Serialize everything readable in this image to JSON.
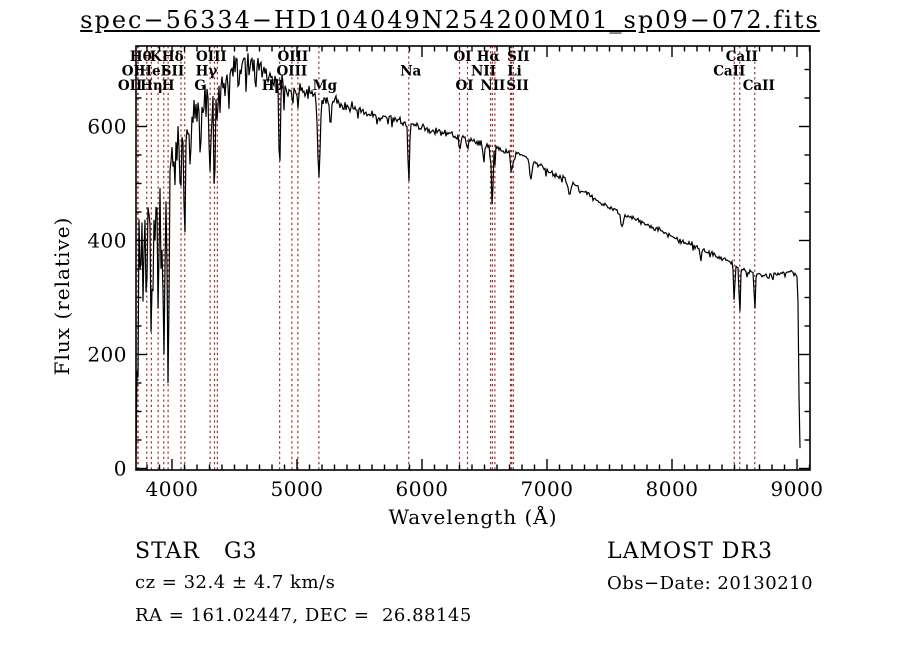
{
  "title": "spec−56334−HD104049N254200M01_sp09−072.fits",
  "axes": {
    "xlabel": "Wavelength (Å)",
    "ylabel": "Flux (relative)",
    "x_ticks": [
      4000,
      5000,
      6000,
      7000,
      8000,
      9000
    ],
    "y_ticks": [
      0,
      200,
      400,
      600
    ],
    "x_minor_step": 100,
    "y_minor_step": 50,
    "x_range": [
      3712,
      9104
    ],
    "y_range": [
      0,
      741
    ]
  },
  "annotations": {
    "class_label": "STAR   G3",
    "cz": "cz = 32.4 ± 4.7 km/s",
    "radec": "RA = 161.02447, DEC =  26.88145",
    "survey": "LAMOST DR3",
    "obs_date": "Obs−Date: 20130210"
  },
  "colors": {
    "spectrum": "#000000",
    "line_marker": "#a03028",
    "frame": "#000000"
  },
  "chart_data": {
    "type": "line",
    "title": "spec−56334−HD104049N254200M01_sp09−072.fits",
    "xlabel": "Wavelength (Å)",
    "ylabel": "Flux (relative)",
    "xlim": [
      3712,
      9104
    ],
    "ylim": [
      0,
      741
    ],
    "grid": false,
    "spectral_lines": [
      {
        "label": "OI",
        "wavelength": 3726,
        "row": 2,
        "dx": -7
      },
      {
        "label": "OII",
        "wavelength": 3729,
        "row": 3,
        "dx": -8
      },
      {
        "label": "Hθ",
        "wavelength": 3798,
        "row": 1,
        "dx": -6
      },
      {
        "label": "Hη",
        "wavelength": 3835,
        "row": 3,
        "dx": 0
      },
      {
        "label": "HeI",
        "wavelength": 3889,
        "row": 2,
        "dx": -5
      },
      {
        "label": "K",
        "wavelength": 3934,
        "row": 1,
        "dx": -8
      },
      {
        "label": "H",
        "wavelength": 3969,
        "row": 3,
        "dx": 0
      },
      {
        "label": "SII",
        "wavelength": 4072,
        "row": 2,
        "dx": -8
      },
      {
        "label": "Hδ",
        "wavelength": 4102,
        "row": 1,
        "dx": -12
      },
      {
        "label": "G",
        "wavelength": 4305,
        "row": 3,
        "dx": -10
      },
      {
        "label": "Hγ",
        "wavelength": 4340,
        "row": 2,
        "dx": -8
      },
      {
        "label": "OIII",
        "wavelength": 4363,
        "row": 1,
        "dx": -6
      },
      {
        "label": "Hβ",
        "wavelength": 4861,
        "row": 3,
        "dx": -7
      },
      {
        "label": "OIII",
        "wavelength": 4959,
        "row": 2,
        "dx": 0
      },
      {
        "label": "OIII",
        "wavelength": 5007,
        "row": 1,
        "dx": -5
      },
      {
        "label": "Mg",
        "wavelength": 5175,
        "row": 3,
        "dx": 6
      },
      {
        "label": "Na",
        "wavelength": 5894,
        "row": 2,
        "dx": 2
      },
      {
        "label": "OI",
        "wavelength": 6300,
        "row": 1,
        "dx": 3
      },
      {
        "label": "OI",
        "wavelength": 6364,
        "row": 3,
        "dx": -3
      },
      {
        "label": "NII",
        "wavelength": 6548,
        "row": 2,
        "dx": -7
      },
      {
        "label": "Hα",
        "wavelength": 6563,
        "row": 1,
        "dx": -4
      },
      {
        "label": "NII",
        "wavelength": 6583,
        "row": 3,
        "dx": -2
      },
      {
        "label": "Li",
        "wavelength": 6708,
        "row": 2,
        "dx": 4
      },
      {
        "label": "SII",
        "wavelength": 6717,
        "row": 3,
        "dx": 6
      },
      {
        "label": "SII",
        "wavelength": 6731,
        "row": 1,
        "dx": 5
      },
      {
        "label": "CaII",
        "wavelength": 8498,
        "row": 2,
        "dx": -5
      },
      {
        "label": "CaII",
        "wavelength": 8542,
        "row": 1,
        "dx": 2
      },
      {
        "label": "CaII",
        "wavelength": 8662,
        "row": 3,
        "dx": 4
      }
    ],
    "continuum": [
      [
        3712,
        15
      ],
      [
        3715,
        120
      ],
      [
        3720,
        260
      ],
      [
        3728,
        385
      ],
      [
        3745,
        420
      ],
      [
        3762,
        430
      ],
      [
        3800,
        450
      ],
      [
        3850,
        462
      ],
      [
        3900,
        478
      ],
      [
        3950,
        492
      ],
      [
        4000,
        530
      ],
      [
        4050,
        562
      ],
      [
        4100,
        588
      ],
      [
        4150,
        607
      ],
      [
        4200,
        626
      ],
      [
        4250,
        641
      ],
      [
        4300,
        655
      ],
      [
        4350,
        662
      ],
      [
        4400,
        681
      ],
      [
        4450,
        695
      ],
      [
        4500,
        705
      ],
      [
        4550,
        708
      ],
      [
        4600,
        712
      ],
      [
        4650,
        710
      ],
      [
        4700,
        707
      ],
      [
        4750,
        700
      ],
      [
        4800,
        692
      ],
      [
        4861,
        685
      ],
      [
        4900,
        668
      ],
      [
        4950,
        665
      ],
      [
        5000,
        668
      ],
      [
        5060,
        661
      ],
      [
        5120,
        657
      ],
      [
        5175,
        655
      ],
      [
        5250,
        648
      ],
      [
        5350,
        640
      ],
      [
        5450,
        633
      ],
      [
        5550,
        624
      ],
      [
        5650,
        617
      ],
      [
        5750,
        611
      ],
      [
        5850,
        607
      ],
      [
        5950,
        601
      ],
      [
        6050,
        595
      ],
      [
        6150,
        590
      ],
      [
        6250,
        586
      ],
      [
        6350,
        578
      ],
      [
        6450,
        572
      ],
      [
        6550,
        566
      ],
      [
        6650,
        559
      ],
      [
        6750,
        553
      ],
      [
        6870,
        543
      ],
      [
        7000,
        523
      ],
      [
        7100,
        512
      ],
      [
        7200,
        500
      ],
      [
        7300,
        485
      ],
      [
        7400,
        470
      ],
      [
        7500,
        458
      ],
      [
        7600,
        448
      ],
      [
        7700,
        438
      ],
      [
        7800,
        428
      ],
      [
        7900,
        418
      ],
      [
        8000,
        407
      ],
      [
        8100,
        398
      ],
      [
        8200,
        390
      ],
      [
        8300,
        379
      ],
      [
        8400,
        369
      ],
      [
        8500,
        357
      ],
      [
        8600,
        346
      ],
      [
        8700,
        340
      ],
      [
        8800,
        338
      ],
      [
        8900,
        344
      ],
      [
        8960,
        346
      ],
      [
        9000,
        338
      ],
      [
        9006,
        332
      ],
      [
        9014,
        160
      ],
      [
        9022,
        45
      ],
      [
        9028,
        22
      ]
    ],
    "absorption_dips": [
      [
        3727,
        170,
        6
      ],
      [
        3750,
        130,
        5
      ],
      [
        3771,
        120,
        5
      ],
      [
        3798,
        160,
        6
      ],
      [
        3835,
        250,
        6
      ],
      [
        3889,
        200,
        6
      ],
      [
        3934,
        320,
        7
      ],
      [
        3969,
        350,
        7
      ],
      [
        4026,
        60,
        5
      ],
      [
        4072,
        70,
        5
      ],
      [
        4102,
        170,
        6
      ],
      [
        4144,
        55,
        5
      ],
      [
        4226,
        60,
        5
      ],
      [
        4305,
        150,
        8
      ],
      [
        4340,
        185,
        6
      ],
      [
        4363,
        60,
        4
      ],
      [
        4384,
        55,
        4
      ],
      [
        4455,
        50,
        4
      ],
      [
        4530,
        50,
        5
      ],
      [
        4668,
        55,
        4
      ],
      [
        4861,
        178,
        6
      ],
      [
        4959,
        25,
        4
      ],
      [
        5007,
        30,
        4
      ],
      [
        5175,
        140,
        10
      ],
      [
        5270,
        45,
        6
      ],
      [
        5894,
        105,
        6
      ],
      [
        6300,
        28,
        4
      ],
      [
        6364,
        22,
        4
      ],
      [
        6494,
        35,
        5
      ],
      [
        6548,
        30,
        4
      ],
      [
        6563,
        122,
        5
      ],
      [
        6583,
        30,
        4
      ],
      [
        6708,
        25,
        4
      ],
      [
        6717,
        25,
        4
      ],
      [
        6731,
        28,
        4
      ],
      [
        6870,
        35,
        10
      ],
      [
        7180,
        20,
        8
      ],
      [
        7600,
        25,
        10
      ],
      [
        8230,
        20,
        6
      ],
      [
        8498,
        60,
        5
      ],
      [
        8542,
        85,
        5
      ],
      [
        8662,
        65,
        5
      ]
    ],
    "noise_amplitude": [
      [
        3712,
        100
      ],
      [
        3760,
        95
      ],
      [
        3820,
        85
      ],
      [
        3880,
        80
      ],
      [
        3940,
        75
      ],
      [
        4000,
        60
      ],
      [
        4100,
        45
      ],
      [
        4200,
        38
      ],
      [
        4350,
        30
      ],
      [
        4500,
        26
      ],
      [
        4700,
        24
      ],
      [
        4900,
        18
      ],
      [
        5100,
        14
      ],
      [
        5400,
        11
      ],
      [
        5700,
        9
      ],
      [
        6000,
        8
      ],
      [
        6400,
        7
      ],
      [
        6800,
        6
      ],
      [
        7200,
        6
      ],
      [
        7600,
        5
      ],
      [
        8000,
        5
      ],
      [
        8400,
        5
      ],
      [
        8600,
        6
      ],
      [
        8800,
        5
      ],
      [
        9000,
        4
      ]
    ]
  }
}
